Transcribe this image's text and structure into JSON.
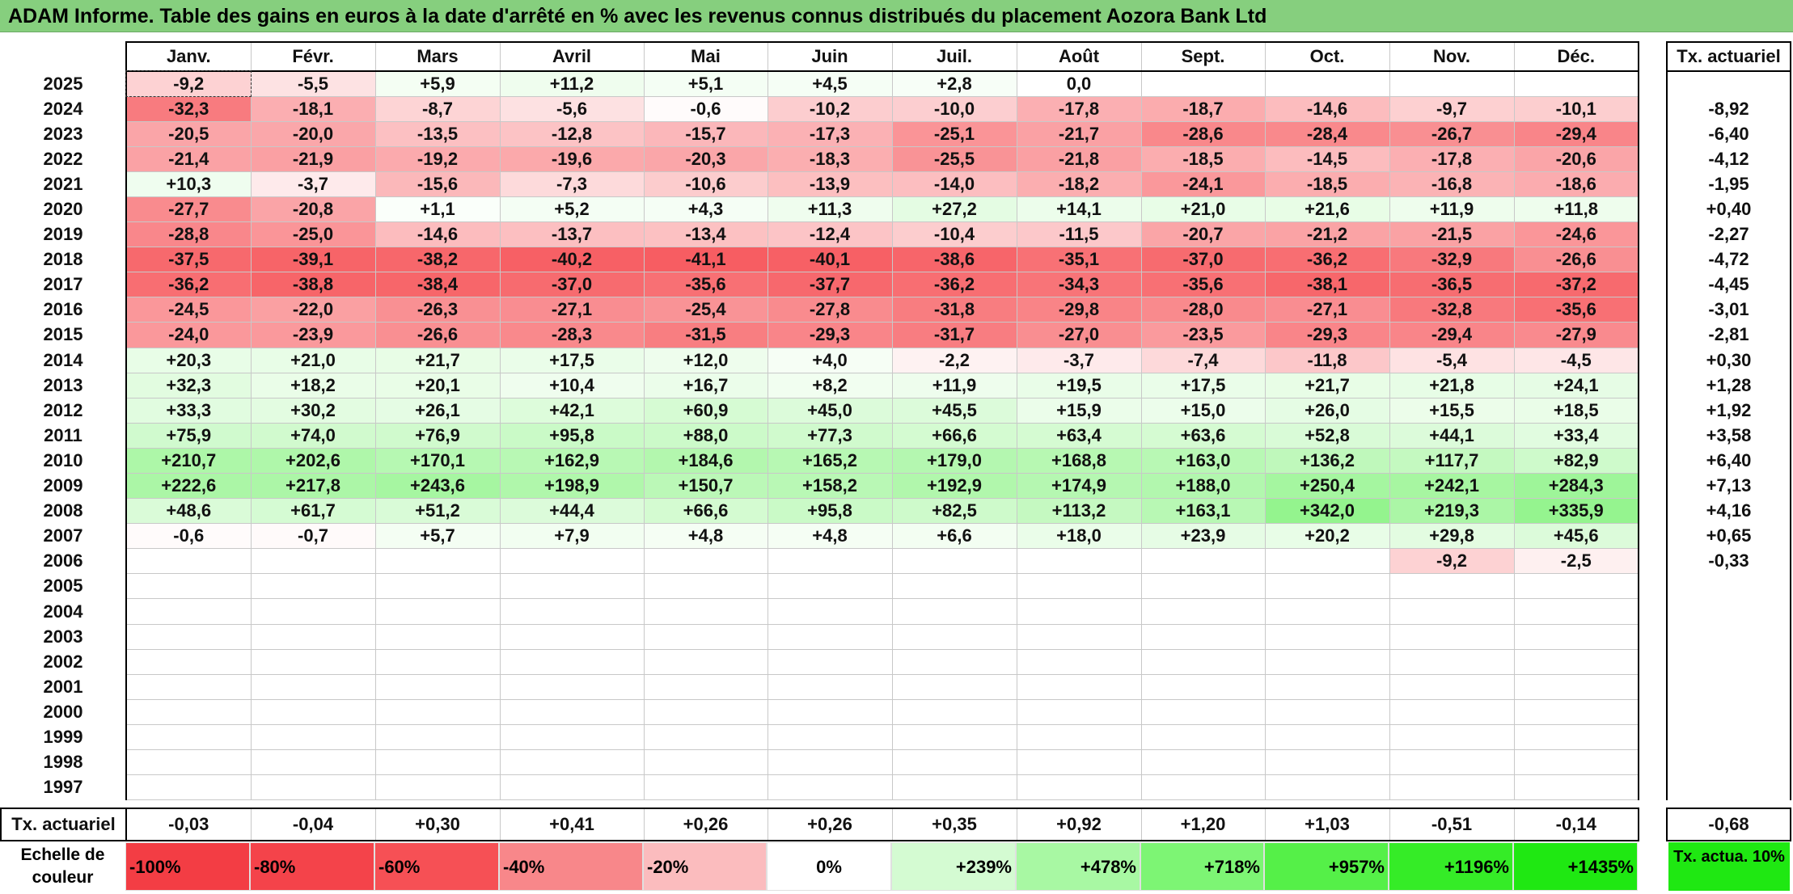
{
  "title": "ADAM Informe. Table des gains en euros à la date d'arrêté en % avec les revenus connus distribués du placement Aozora Bank Ltd",
  "months": [
    "Janv.",
    "Févr.",
    "Mars",
    "Avril",
    "Mai",
    "Juin",
    "Juil.",
    "Août",
    "Sept.",
    "Oct.",
    "Nov.",
    "Déc."
  ],
  "side_header": "Tx. actuariel",
  "rows": [
    {
      "year": "2025",
      "values": [
        "-9,2",
        "-5,5",
        "+5,9",
        "+11,2",
        "+5,1",
        "+4,5",
        "+2,8",
        "0,0",
        "",
        "",
        "",
        ""
      ],
      "tx": ""
    },
    {
      "year": "2024",
      "values": [
        "-32,3",
        "-18,1",
        "-8,7",
        "-5,6",
        "-0,6",
        "-10,2",
        "-10,0",
        "-17,8",
        "-18,7",
        "-14,6",
        "-9,7",
        "-10,1"
      ],
      "tx": "-8,92"
    },
    {
      "year": "2023",
      "values": [
        "-20,5",
        "-20,0",
        "-13,5",
        "-12,8",
        "-15,7",
        "-17,3",
        "-25,1",
        "-21,7",
        "-28,6",
        "-28,4",
        "-26,7",
        "-29,4"
      ],
      "tx": "-6,40"
    },
    {
      "year": "2022",
      "values": [
        "-21,4",
        "-21,9",
        "-19,2",
        "-19,6",
        "-20,3",
        "-18,3",
        "-25,5",
        "-21,8",
        "-18,5",
        "-14,5",
        "-17,8",
        "-20,6"
      ],
      "tx": "-4,12"
    },
    {
      "year": "2021",
      "values": [
        "+10,3",
        "-3,7",
        "-15,6",
        "-7,3",
        "-10,6",
        "-13,9",
        "-14,0",
        "-18,2",
        "-24,1",
        "-18,5",
        "-16,8",
        "-18,6"
      ],
      "tx": "-1,95"
    },
    {
      "year": "2020",
      "values": [
        "-27,7",
        "-20,8",
        "+1,1",
        "+5,2",
        "+4,3",
        "+11,3",
        "+27,2",
        "+14,1",
        "+21,0",
        "+21,6",
        "+11,9",
        "+11,8"
      ],
      "tx": "+0,40"
    },
    {
      "year": "2019",
      "values": [
        "-28,8",
        "-25,0",
        "-14,6",
        "-13,7",
        "-13,4",
        "-12,4",
        "-10,4",
        "-11,5",
        "-20,7",
        "-21,2",
        "-21,5",
        "-24,6"
      ],
      "tx": "-2,27"
    },
    {
      "year": "2018",
      "values": [
        "-37,5",
        "-39,1",
        "-38,2",
        "-40,2",
        "-41,1",
        "-40,1",
        "-38,6",
        "-35,1",
        "-37,0",
        "-36,2",
        "-32,9",
        "-26,6"
      ],
      "tx": "-4,72"
    },
    {
      "year": "2017",
      "values": [
        "-36,2",
        "-38,8",
        "-38,4",
        "-37,0",
        "-35,6",
        "-37,7",
        "-36,2",
        "-34,3",
        "-35,6",
        "-38,1",
        "-36,5",
        "-37,2"
      ],
      "tx": "-4,45"
    },
    {
      "year": "2016",
      "values": [
        "-24,5",
        "-22,0",
        "-26,3",
        "-27,1",
        "-25,4",
        "-27,8",
        "-31,8",
        "-29,8",
        "-28,0",
        "-27,1",
        "-32,8",
        "-35,6"
      ],
      "tx": "-3,01"
    },
    {
      "year": "2015",
      "values": [
        "-24,0",
        "-23,9",
        "-26,6",
        "-28,3",
        "-31,5",
        "-29,3",
        "-31,7",
        "-27,0",
        "-23,5",
        "-29,3",
        "-29,4",
        "-27,9"
      ],
      "tx": "-2,81"
    },
    {
      "year": "2014",
      "values": [
        "+20,3",
        "+21,0",
        "+21,7",
        "+17,5",
        "+12,0",
        "+4,0",
        "-2,2",
        "-3,7",
        "-7,4",
        "-11,8",
        "-5,4",
        "-4,5"
      ],
      "tx": "+0,30"
    },
    {
      "year": "2013",
      "values": [
        "+32,3",
        "+18,2",
        "+20,1",
        "+10,4",
        "+16,7",
        "+8,2",
        "+11,9",
        "+19,5",
        "+17,5",
        "+21,7",
        "+21,8",
        "+24,1"
      ],
      "tx": "+1,28"
    },
    {
      "year": "2012",
      "values": [
        "+33,3",
        "+30,2",
        "+26,1",
        "+42,1",
        "+60,9",
        "+45,0",
        "+45,5",
        "+15,9",
        "+15,0",
        "+26,0",
        "+15,5",
        "+18,5"
      ],
      "tx": "+1,92"
    },
    {
      "year": "2011",
      "values": [
        "+75,9",
        "+74,0",
        "+76,9",
        "+95,8",
        "+88,0",
        "+77,3",
        "+66,6",
        "+63,4",
        "+63,6",
        "+52,8",
        "+44,1",
        "+33,4"
      ],
      "tx": "+3,58"
    },
    {
      "year": "2010",
      "values": [
        "+210,7",
        "+202,6",
        "+170,1",
        "+162,9",
        "+184,6",
        "+165,2",
        "+179,0",
        "+168,8",
        "+163,0",
        "+136,2",
        "+117,7",
        "+82,9"
      ],
      "tx": "+6,40"
    },
    {
      "year": "2009",
      "values": [
        "+222,6",
        "+217,8",
        "+243,6",
        "+198,9",
        "+150,7",
        "+158,2",
        "+192,9",
        "+174,9",
        "+188,0",
        "+250,4",
        "+242,1",
        "+284,3"
      ],
      "tx": "+7,13"
    },
    {
      "year": "2008",
      "values": [
        "+48,6",
        "+61,7",
        "+51,2",
        "+44,4",
        "+66,6",
        "+95,8",
        "+82,5",
        "+113,2",
        "+163,1",
        "+342,0",
        "+219,3",
        "+335,9"
      ],
      "tx": "+4,16"
    },
    {
      "year": "2007",
      "values": [
        "-0,6",
        "-0,7",
        "+5,7",
        "+7,9",
        "+4,8",
        "+4,8",
        "+6,6",
        "+18,0",
        "+23,9",
        "+20,2",
        "+29,8",
        "+45,6"
      ],
      "tx": "+0,65"
    },
    {
      "year": "2006",
      "values": [
        "",
        "",
        "",
        "",
        "",
        "",
        "",
        "",
        "",
        "",
        "-9,2",
        "-2,5"
      ],
      "tx": "-0,33"
    },
    {
      "year": "2005",
      "values": [
        "",
        "",
        "",
        "",
        "",
        "",
        "",
        "",
        "",
        "",
        "",
        ""
      ],
      "tx": ""
    },
    {
      "year": "2004",
      "values": [
        "",
        "",
        "",
        "",
        "",
        "",
        "",
        "",
        "",
        "",
        "",
        ""
      ],
      "tx": ""
    },
    {
      "year": "2003",
      "values": [
        "",
        "",
        "",
        "",
        "",
        "",
        "",
        "",
        "",
        "",
        "",
        ""
      ],
      "tx": ""
    },
    {
      "year": "2002",
      "values": [
        "",
        "",
        "",
        "",
        "",
        "",
        "",
        "",
        "",
        "",
        "",
        ""
      ],
      "tx": ""
    },
    {
      "year": "2001",
      "values": [
        "",
        "",
        "",
        "",
        "",
        "",
        "",
        "",
        "",
        "",
        "",
        ""
      ],
      "tx": ""
    },
    {
      "year": "2000",
      "values": [
        "",
        "",
        "",
        "",
        "",
        "",
        "",
        "",
        "",
        "",
        "",
        ""
      ],
      "tx": ""
    },
    {
      "year": "1999",
      "values": [
        "",
        "",
        "",
        "",
        "",
        "",
        "",
        "",
        "",
        "",
        "",
        ""
      ],
      "tx": ""
    },
    {
      "year": "1998",
      "values": [
        "",
        "",
        "",
        "",
        "",
        "",
        "",
        "",
        "",
        "",
        "",
        ""
      ],
      "tx": ""
    },
    {
      "year": "1997",
      "values": [
        "",
        "",
        "",
        "",
        "",
        "",
        "",
        "",
        "",
        "",
        "",
        ""
      ],
      "tx": ""
    }
  ],
  "footer": {
    "label": "Tx. actuariel",
    "values": [
      "-0,03",
      "-0,04",
      "+0,30",
      "+0,41",
      "+0,26",
      "+0,26",
      "+0,35",
      "+0,92",
      "+1,20",
      "+1,03",
      "-0,51",
      "-0,14"
    ],
    "tx": "-0,68"
  },
  "scale": {
    "label": "Echelle de couleur",
    "items": [
      {
        "text": "-100%",
        "color": "#f33d44"
      },
      {
        "text": "-80%",
        "color": "#f4434a"
      },
      {
        "text": "-60%",
        "color": "#f65055"
      },
      {
        "text": "-40%",
        "color": "#f8878a"
      },
      {
        "text": "-20%",
        "color": "#fbbcbe"
      },
      {
        "text": "0%",
        "color": "#ffffff"
      },
      {
        "text": "+239%",
        "color": "#d4fbd2"
      },
      {
        "text": "+478%",
        "color": "#a8f8a3"
      },
      {
        "text": "+718%",
        "color": "#7df574"
      },
      {
        "text": "+957%",
        "color": "#55f048"
      },
      {
        "text": "+1196%",
        "color": "#35ec27"
      },
      {
        "text": "+1435%",
        "color": "#1fe812"
      }
    ],
    "actua_text": "Tx. actua. 10%",
    "actua_color": "#1fe812"
  },
  "colors": {
    "title_bg": "#86cf7e",
    "negative_max": "#f65055",
    "positive_max": "#1fe812"
  }
}
